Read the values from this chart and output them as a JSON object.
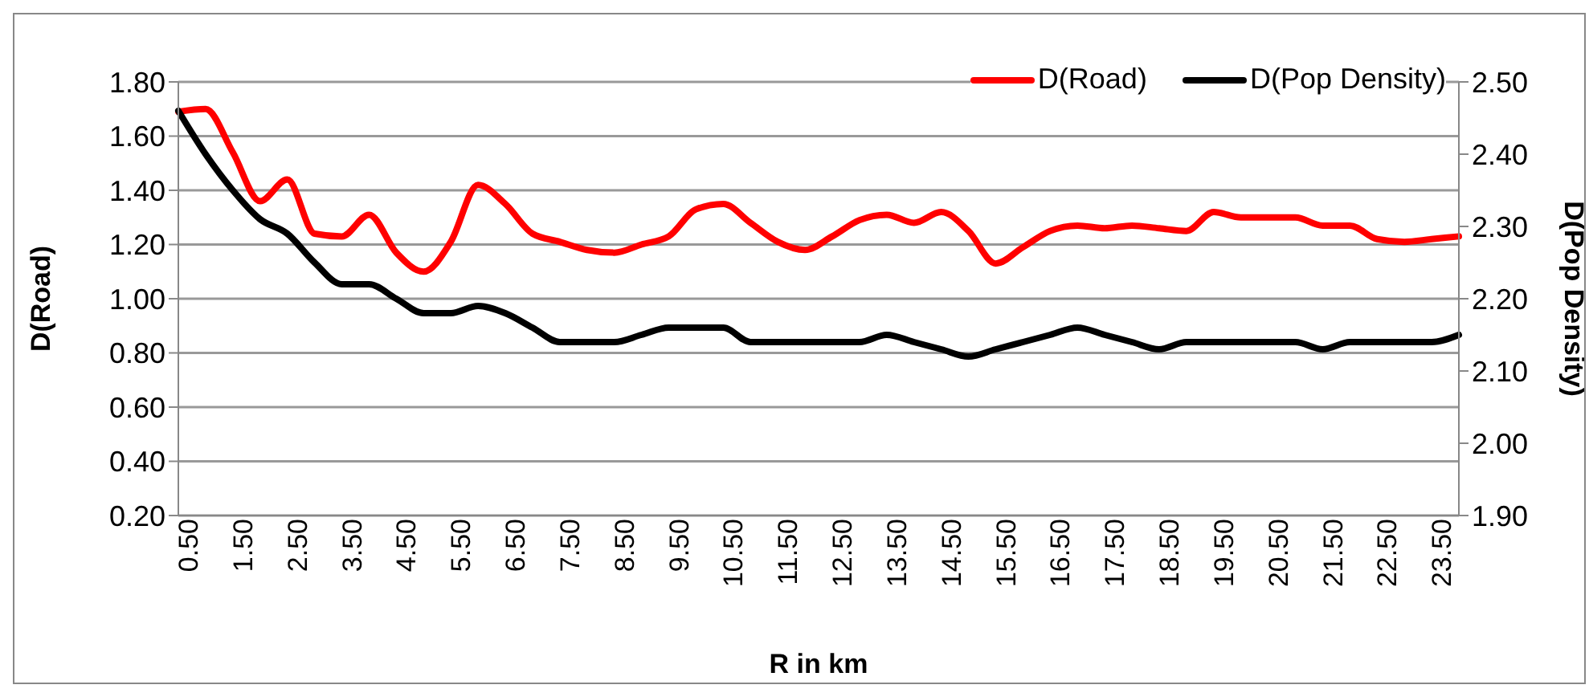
{
  "chart_data": {
    "type": "line",
    "xlabel": "R in km",
    "ylabel": "D(Road)",
    "y2label": "D(Pop Density)",
    "categories": [
      "0.50",
      null,
      "1.50",
      null,
      "2.50",
      null,
      "3.50",
      null,
      "4.50",
      null,
      "5.50",
      null,
      "6.50",
      null,
      "7.50",
      null,
      "8.50",
      null,
      "9.50",
      null,
      "10.50",
      null,
      "11.50",
      null,
      "12.50",
      null,
      "13.50",
      null,
      "14.50",
      null,
      "15.50",
      null,
      "16.50",
      null,
      "17.50",
      null,
      "18.50",
      null,
      "19.50",
      null,
      "20.50",
      null,
      "21.50",
      null,
      "22.50",
      null,
      "23.50",
      null
    ],
    "series": [
      {
        "name": "D(Road)",
        "color": "#ff0000",
        "values": [
          1.69,
          1.7,
          1.54,
          1.36,
          1.44,
          1.24,
          1.23,
          1.31,
          1.17,
          1.1,
          1.21,
          1.42,
          1.35,
          1.24,
          1.21,
          1.18,
          1.17,
          1.2,
          1.23,
          1.33,
          1.35,
          1.28,
          1.21,
          1.18,
          1.23,
          1.29,
          1.31,
          1.28,
          1.32,
          1.25,
          1.13,
          1.19,
          1.25,
          1.27,
          1.26,
          1.27,
          1.26,
          1.25,
          1.32,
          1.3,
          1.3,
          1.3,
          1.27,
          1.27,
          1.22,
          1.21,
          1.22,
          1.23
        ]
      },
      {
        "name": "D(Pop Density)",
        "color": "#000000",
        "axis": "y2",
        "values": [
          2.46,
          2.4,
          2.35,
          2.31,
          2.29,
          2.25,
          2.22,
          2.22,
          2.2,
          2.18,
          2.18,
          2.19,
          2.18,
          2.16,
          2.14,
          2.14,
          2.14,
          2.15,
          2.16,
          2.16,
          2.16,
          2.14,
          2.14,
          2.14,
          2.14,
          2.14,
          2.15,
          2.14,
          2.13,
          2.12,
          2.13,
          2.14,
          2.15,
          2.16,
          2.15,
          2.14,
          2.13,
          2.14,
          2.14,
          2.14,
          2.14,
          2.14,
          2.13,
          2.14,
          2.14,
          2.14,
          2.14,
          2.15
        ]
      }
    ],
    "ylim": [
      0.2,
      1.8
    ],
    "yticks": [
      {
        "value": 0.2,
        "label": "0.20"
      },
      {
        "value": 0.4,
        "label": "0.40"
      },
      {
        "value": 0.6,
        "label": "0.60"
      },
      {
        "value": 0.8,
        "label": "0.80"
      },
      {
        "value": 1.0,
        "label": "1.00"
      },
      {
        "value": 1.2,
        "label": "1.20"
      },
      {
        "value": 1.4,
        "label": "1.40"
      },
      {
        "value": 1.6,
        "label": "1.60"
      },
      {
        "value": 1.8,
        "label": "1.80"
      }
    ],
    "y2lim": [
      1.9,
      2.5
    ],
    "y2ticks": [
      {
        "value": 1.9,
        "label": "1.90"
      },
      {
        "value": 2.0,
        "label": "2.00"
      },
      {
        "value": 2.1,
        "label": "2.10"
      },
      {
        "value": 2.2,
        "label": "2.20"
      },
      {
        "value": 2.3,
        "label": "2.30"
      },
      {
        "value": 2.4,
        "label": "2.40"
      },
      {
        "value": 2.5,
        "label": "2.50"
      }
    ],
    "grid": "y",
    "legend": "top right",
    "marker": "none",
    "line_style": "solid"
  }
}
